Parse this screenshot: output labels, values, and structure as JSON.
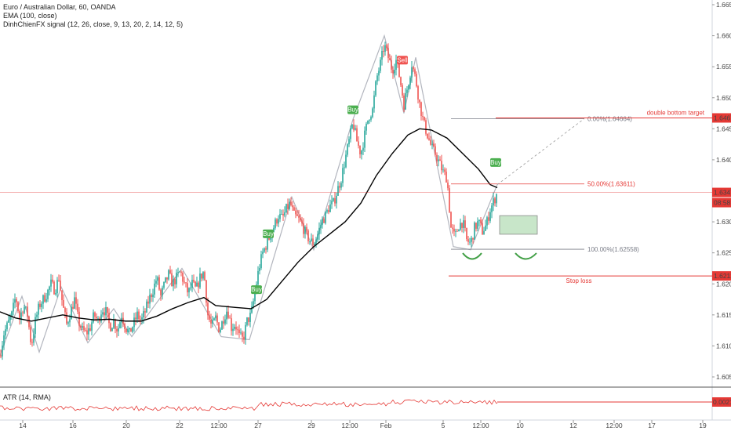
{
  "legend": {
    "symbol": "Euro / Australian Dollar, 60, OANDA",
    "ema": "EMA (100, close)",
    "signal": "DinhChienFX signal (12, 26, close, 9, 13, 20, 2, 14, 12, 5)"
  },
  "atr_legend": "ATR (14, RMA)",
  "colors": {
    "up": "#26a69a",
    "down": "#ef5350",
    "ema": "#000000",
    "pattern": "#b2b5be",
    "level": "#e53935",
    "fib": "#787b86",
    "buy": "#4caf50",
    "sell": "#ef5350",
    "box": "#c8e6c9",
    "arc": "#43a047"
  },
  "chart_data": {
    "type": "candlestick",
    "title": "Euro / Australian Dollar, 60, OANDA",
    "ylim": [
      1.6,
      1.667
    ],
    "y_ticks": [
      "1.66500",
      "1.66000",
      "1.65500",
      "1.65000",
      "1.64500",
      "1.64000",
      "1.63500",
      "1.63000",
      "1.62500",
      "1.62000",
      "1.61500",
      "1.61000",
      "1.60500"
    ],
    "x_ticks": [
      "14",
      "16",
      "20",
      "22",
      "12:00",
      "27",
      "29",
      "12:00",
      "Feb",
      "5",
      "12:00",
      "10",
      "12",
      "12:00",
      "17",
      "19"
    ],
    "price_path": [
      [
        0,
        1.6085
      ],
      [
        5,
        1.612
      ],
      [
        10,
        1.6135
      ],
      [
        15,
        1.615
      ],
      [
        20,
        1.618
      ],
      [
        25,
        1.6145
      ],
      [
        30,
        1.6165
      ],
      [
        35,
        1.615
      ],
      [
        40,
        1.61
      ],
      [
        45,
        1.614
      ],
      [
        50,
        1.6165
      ],
      [
        55,
        1.6175
      ],
      [
        60,
        1.6185
      ],
      [
        65,
        1.62
      ],
      [
        70,
        1.619
      ],
      [
        75,
        1.621
      ],
      [
        80,
        1.6165
      ],
      [
        85,
        1.6135
      ],
      [
        90,
        1.6155
      ],
      [
        95,
        1.6175
      ],
      [
        100,
        1.614
      ],
      [
        105,
        1.6125
      ],
      [
        110,
        1.612
      ],
      [
        115,
        1.613
      ],
      [
        120,
        1.615
      ],
      [
        125,
        1.614
      ],
      [
        130,
        1.616
      ],
      [
        135,
        1.6155
      ],
      [
        140,
        1.613
      ],
      [
        145,
        1.614
      ],
      [
        150,
        1.6125
      ],
      [
        155,
        1.615
      ],
      [
        160,
        1.613
      ],
      [
        165,
        1.612
      ],
      [
        170,
        1.6135
      ],
      [
        175,
        1.615
      ],
      [
        180,
        1.614
      ],
      [
        185,
        1.6155
      ],
      [
        190,
        1.6175
      ],
      [
        195,
        1.619
      ],
      [
        200,
        1.621
      ],
      [
        205,
        1.618
      ],
      [
        210,
        1.62
      ],
      [
        215,
        1.6215
      ],
      [
        220,
        1.62
      ],
      [
        225,
        1.621
      ],
      [
        230,
        1.622
      ],
      [
        235,
        1.62
      ],
      [
        240,
        1.6185
      ],
      [
        245,
        1.62
      ],
      [
        250,
        1.619
      ],
      [
        255,
        1.621
      ],
      [
        260,
        1.622
      ],
      [
        265,
        1.615
      ],
      [
        270,
        1.613
      ],
      [
        275,
        1.6145
      ],
      [
        280,
        1.6125
      ],
      [
        285,
        1.6145
      ],
      [
        290,
        1.616
      ],
      [
        295,
        1.613
      ],
      [
        300,
        1.6135
      ],
      [
        305,
        1.6115
      ],
      [
        310,
        1.611
      ],
      [
        315,
        1.614
      ],
      [
        320,
        1.615
      ],
      [
        325,
        1.6185
      ],
      [
        330,
        1.6225
      ],
      [
        335,
        1.625
      ],
      [
        340,
        1.6265
      ],
      [
        345,
        1.628
      ],
      [
        350,
        1.6295
      ],
      [
        355,
        1.631
      ],
      [
        360,
        1.6305
      ],
      [
        365,
        1.632
      ],
      [
        370,
        1.633
      ],
      [
        375,
        1.631
      ],
      [
        380,
        1.6305
      ],
      [
        385,
        1.6295
      ],
      [
        390,
        1.628
      ],
      [
        395,
        1.627
      ],
      [
        400,
        1.6265
      ],
      [
        405,
        1.628
      ],
      [
        410,
        1.63
      ],
      [
        415,
        1.631
      ],
      [
        420,
        1.6325
      ],
      [
        425,
        1.633
      ],
      [
        430,
        1.635
      ],
      [
        435,
        1.637
      ],
      [
        440,
        1.64
      ],
      [
        445,
        1.643
      ],
      [
        450,
        1.646
      ],
      [
        455,
        1.643
      ],
      [
        460,
        1.641
      ],
      [
        465,
        1.644
      ],
      [
        470,
        1.647
      ],
      [
        475,
        1.648
      ],
      [
        480,
        1.653
      ],
      [
        485,
        1.6555
      ],
      [
        490,
        1.6585
      ],
      [
        495,
        1.6565
      ],
      [
        500,
        1.6545
      ],
      [
        505,
        1.656
      ],
      [
        510,
        1.653
      ],
      [
        515,
        1.649
      ],
      [
        520,
        1.652
      ],
      [
        525,
        1.6555
      ],
      [
        530,
        1.653
      ],
      [
        535,
        1.649
      ],
      [
        540,
        1.646
      ],
      [
        545,
        1.644
      ],
      [
        550,
        1.642
      ],
      [
        555,
        1.641
      ],
      [
        560,
        1.6395
      ],
      [
        565,
        1.638
      ],
      [
        570,
        1.637
      ],
      [
        575,
        1.629
      ],
      [
        580,
        1.6275
      ],
      [
        585,
        1.6295
      ],
      [
        590,
        1.63
      ],
      [
        595,
        1.627
      ],
      [
        600,
        1.6265
      ],
      [
        605,
        1.629
      ],
      [
        610,
        1.63
      ],
      [
        615,
        1.6285
      ],
      [
        620,
        1.6295
      ],
      [
        625,
        1.632
      ],
      [
        630,
        1.6335
      ],
      [
        634,
        1.6347
      ]
    ],
    "ema_path": [
      [
        0,
        1.6155
      ],
      [
        20,
        1.6145
      ],
      [
        40,
        1.614
      ],
      [
        60,
        1.6145
      ],
      [
        80,
        1.615
      ],
      [
        100,
        1.6145
      ],
      [
        120,
        1.6142
      ],
      [
        140,
        1.6143
      ],
      [
        160,
        1.614
      ],
      [
        180,
        1.614
      ],
      [
        200,
        1.6148
      ],
      [
        220,
        1.616
      ],
      [
        240,
        1.617
      ],
      [
        260,
        1.6178
      ],
      [
        275,
        1.6165
      ],
      [
        300,
        1.6162
      ],
      [
        320,
        1.616
      ],
      [
        340,
        1.6175
      ],
      [
        360,
        1.6205
      ],
      [
        380,
        1.6235
      ],
      [
        400,
        1.626
      ],
      [
        420,
        1.628
      ],
      [
        440,
        1.63
      ],
      [
        460,
        1.633
      ],
      [
        480,
        1.6375
      ],
      [
        500,
        1.641
      ],
      [
        520,
        1.644
      ],
      [
        535,
        1.645
      ],
      [
        550,
        1.6448
      ],
      [
        570,
        1.6435
      ],
      [
        590,
        1.641
      ],
      [
        610,
        1.6385
      ],
      [
        625,
        1.636
      ],
      [
        634,
        1.6355
      ]
    ],
    "zigzag": [
      [
        0,
        1.6085
      ],
      [
        28,
        1.618
      ],
      [
        50,
        1.609
      ],
      [
        78,
        1.6195
      ],
      [
        112,
        1.6105
      ],
      [
        145,
        1.616
      ],
      [
        168,
        1.6115
      ],
      [
        232,
        1.6225
      ],
      [
        282,
        1.6115
      ],
      [
        318,
        1.611
      ],
      [
        372,
        1.634
      ],
      [
        400,
        1.6255
      ],
      [
        450,
        1.6465
      ],
      [
        490,
        1.66
      ],
      [
        515,
        1.6475
      ],
      [
        530,
        1.6565
      ],
      [
        578,
        1.626
      ],
      [
        600,
        1.6255
      ],
      [
        634,
        1.636
      ]
    ],
    "current_price": "1.63474",
    "countdown": "08:58",
    "levels": [
      {
        "label": "double bottom target",
        "value": "1.64675"
      },
      {
        "label": "Stop loss",
        "value": "1.62128"
      }
    ],
    "fib": [
      {
        "label": "0.00%(1.64664)",
        "value": 1.64664
      },
      {
        "label": "50.00%(1.63611)",
        "value": 1.63611
      },
      {
        "label": "100.00%(1.62558)",
        "value": 1.62558
      }
    ],
    "signals": [
      {
        "type": "Buy",
        "x": 327,
        "price": 1.619
      },
      {
        "type": "Buy",
        "x": 342,
        "price": 1.628
      },
      {
        "type": "Buy",
        "x": 450,
        "price": 1.648
      },
      {
        "type": "Sell",
        "x": 513,
        "price": 1.656
      },
      {
        "type": "Buy",
        "x": 632,
        "price": 1.6395
      }
    ],
    "atr": {
      "label": "ATR (14, RMA)",
      "value": "0.00215"
    }
  }
}
